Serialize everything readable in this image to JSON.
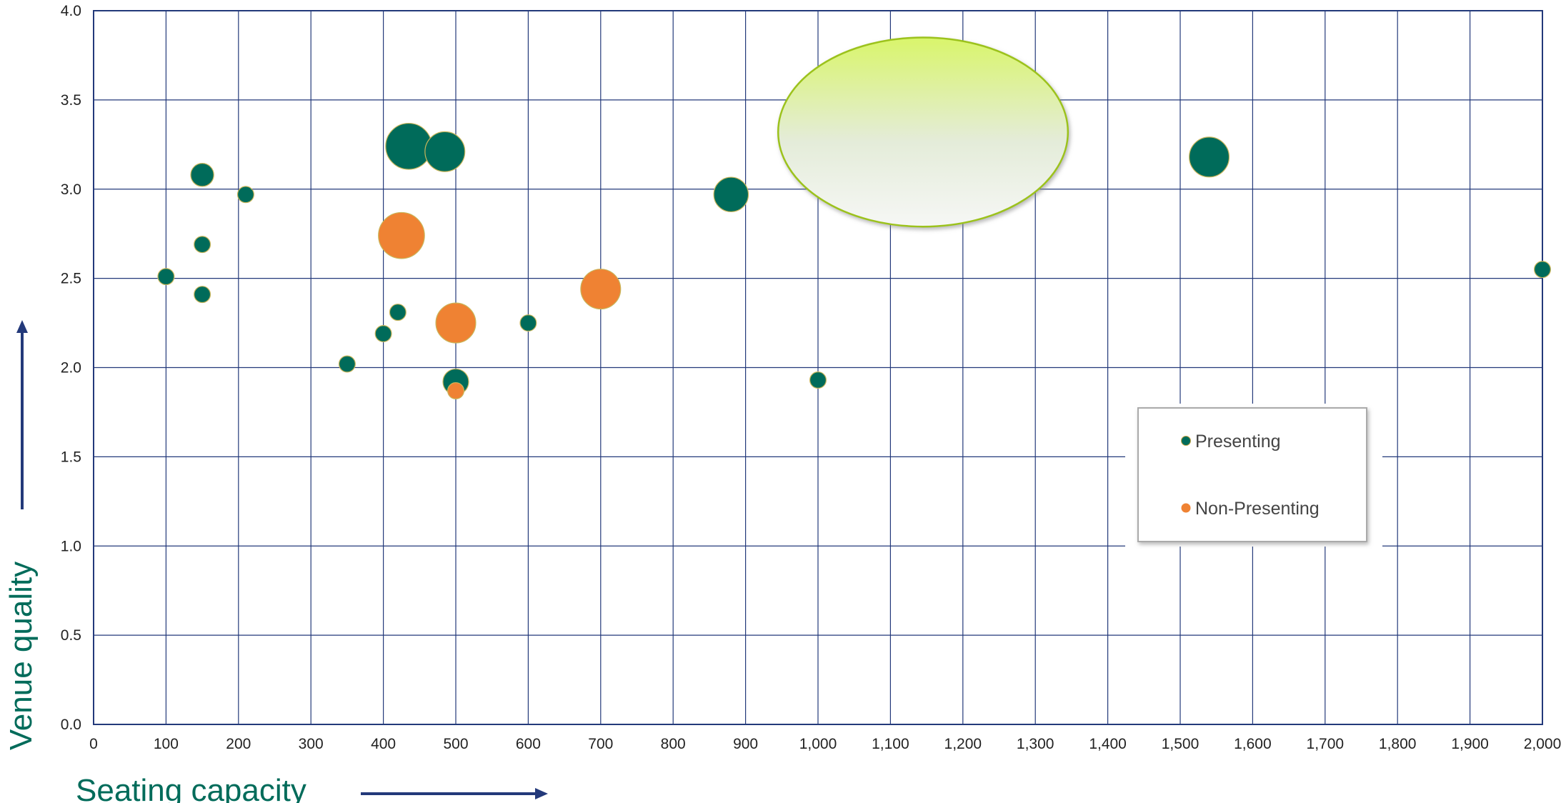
{
  "chart_data": {
    "type": "scatter",
    "bubble": true,
    "xlabel": "Seating capacity",
    "ylabel": "Venue quality",
    "xlim": [
      0,
      2000
    ],
    "ylim": [
      0,
      4.0
    ],
    "x_ticks": [
      "0",
      "100",
      "200",
      "300",
      "400",
      "500",
      "600",
      "700",
      "800",
      "900",
      "1,000",
      "1,100",
      "1,200",
      "1,300",
      "1,400",
      "1,500",
      "1,600",
      "1,700",
      "1,800",
      "1,900",
      "2,000"
    ],
    "y_ticks": [
      "0.0",
      "0.5",
      "1.0",
      "1.5",
      "2.0",
      "2.5",
      "3.0",
      "3.5",
      "4.0"
    ],
    "grid": true,
    "legend_position": "bottom-right",
    "series": [
      {
        "name": "Presenting",
        "color": "#006b5a",
        "points": [
          {
            "x": 100,
            "y": 2.51,
            "size": 1
          },
          {
            "x": 150,
            "y": 3.08,
            "size": 2
          },
          {
            "x": 150,
            "y": 2.69,
            "size": 1
          },
          {
            "x": 150,
            "y": 2.41,
            "size": 1
          },
          {
            "x": 210,
            "y": 2.97,
            "size": 1
          },
          {
            "x": 350,
            "y": 2.02,
            "size": 1
          },
          {
            "x": 400,
            "y": 2.19,
            "size": 1
          },
          {
            "x": 420,
            "y": 2.31,
            "size": 1
          },
          {
            "x": 435,
            "y": 3.24,
            "size": 8
          },
          {
            "x": 485,
            "y": 3.21,
            "size": 6
          },
          {
            "x": 500,
            "y": 1.92,
            "size": 2.5
          },
          {
            "x": 600,
            "y": 2.25,
            "size": 1
          },
          {
            "x": 880,
            "y": 2.97,
            "size": 4.5
          },
          {
            "x": 1000,
            "y": 1.93,
            "size": 1
          },
          {
            "x": 1540,
            "y": 3.18,
            "size": 6
          },
          {
            "x": 2000,
            "y": 2.55,
            "size": 1
          }
        ]
      },
      {
        "name": "Non-Presenting",
        "color": "#ef8233",
        "points": [
          {
            "x": 425,
            "y": 2.74,
            "size": 8
          },
          {
            "x": 500,
            "y": 2.25,
            "size": 6
          },
          {
            "x": 500,
            "y": 1.87,
            "size": 1
          },
          {
            "x": 700,
            "y": 2.44,
            "size": 6
          }
        ]
      }
    ],
    "highlight": {
      "x_center": 1145,
      "y_center": 3.32,
      "x_radius": 200,
      "y_radius": 0.53
    },
    "colors": {
      "grid": "#23397a",
      "title": "#006b5a",
      "arrow": "#23397a",
      "highlight_stroke": "#9cc21a"
    }
  }
}
